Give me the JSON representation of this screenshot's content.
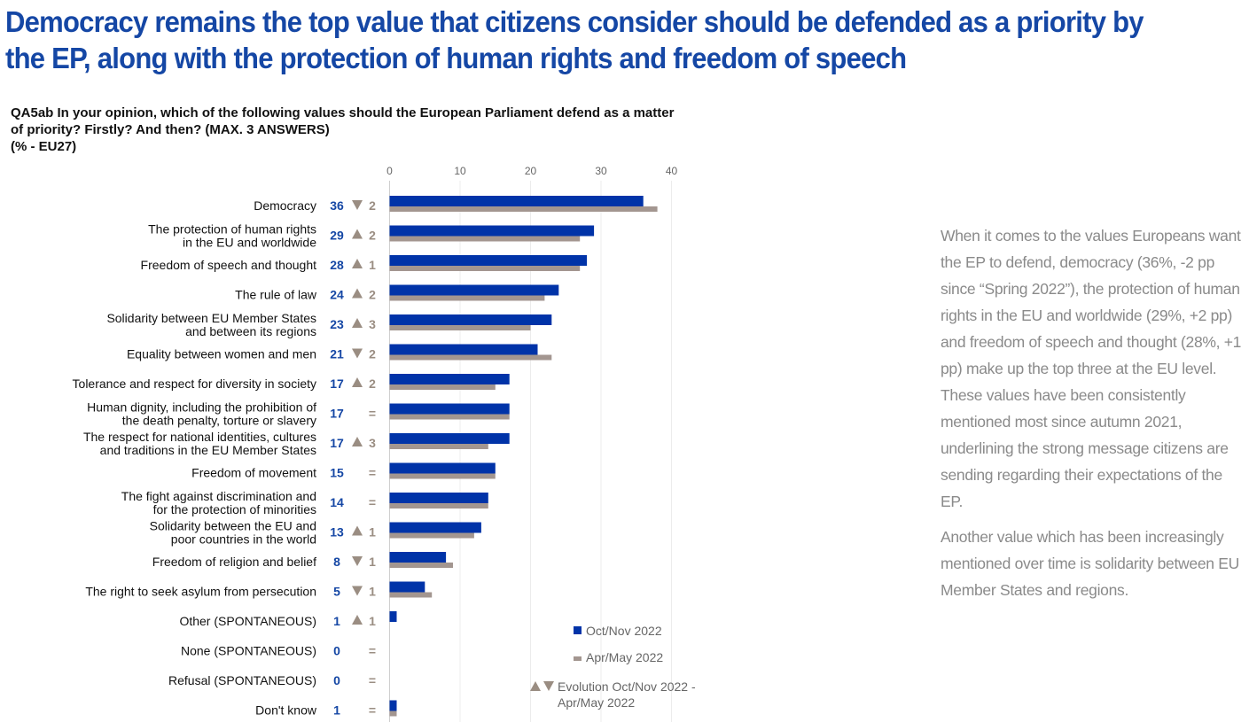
{
  "headline": "Democracy remains the top value that citizens consider should be defended as a priority by the EP, along with the protection of human rights and freedom of speech",
  "question_lines": [
    "QA5ab  In your opinion, which of the following values should the European Parliament defend as a matter",
    "of priority? Firstly? And then? (MAX. 3 ANSWERS)",
    "(% - EU27)"
  ],
  "commentary": [
    "When it comes to the values Europeans want the EP to defend, democracy (36%, -2 pp since “Spring 2022”), the protection of human rights in the EU and worldwide (29%, +2 pp) and freedom of speech and thought (28%, +1 pp) make up the top three at the EU level. These values have been consistently mentioned most since autumn 2021, underlining the strong message citizens are sending regarding their expectations of the EP.",
    "Another value which has been increasingly mentioned over time is solidarity between EU Member States and regions."
  ],
  "colors": {
    "current": "#0033a8",
    "previous": "#a39690",
    "change": "#9a8d82",
    "headline": "#1547a5",
    "commentary": "#8a8a8a"
  },
  "chart_data": {
    "type": "bar",
    "orientation": "horizontal",
    "xlim": [
      0,
      40
    ],
    "xticks": [
      0,
      10,
      20,
      30,
      40
    ],
    "grid": true,
    "legend_position": "bottom-right",
    "categories": [
      [
        "Democracy"
      ],
      [
        "The protection of human rights",
        "in the EU and worldwide"
      ],
      [
        "Freedom of speech and thought"
      ],
      [
        "The rule of law"
      ],
      [
        "Solidarity between EU Member States",
        "and between its regions"
      ],
      [
        "Equality between women and men"
      ],
      [
        "Tolerance and respect for diversity in society"
      ],
      [
        "Human dignity, including the prohibition of",
        "the death penalty, torture or slavery"
      ],
      [
        "The respect for national identities, cultures",
        "and traditions in the EU Member States"
      ],
      [
        "Freedom of movement"
      ],
      [
        "The fight against discrimination and",
        "for the protection of minorities"
      ],
      [
        "Solidarity between the EU and",
        "poor countries in the world"
      ],
      [
        "Freedom of religion and belief"
      ],
      [
        "The right to seek asylum from persecution"
      ],
      [
        "Other (SPONTANEOUS)"
      ],
      [
        "None (SPONTANEOUS)"
      ],
      [
        "Refusal (SPONTANEOUS)"
      ],
      [
        "Don't know"
      ]
    ],
    "series": [
      {
        "name": "Oct/Nov 2022",
        "values": [
          36,
          29,
          28,
          24,
          23,
          21,
          17,
          17,
          17,
          15,
          14,
          13,
          8,
          5,
          1,
          0,
          0,
          1
        ]
      },
      {
        "name": "Apr/May 2022",
        "values": [
          38,
          27,
          27,
          22,
          20,
          23,
          15,
          17,
          14,
          15,
          14,
          12,
          9,
          6,
          0,
          0,
          0,
          1
        ]
      }
    ],
    "change_direction": [
      "down",
      "up",
      "up",
      "up",
      "up",
      "down",
      "up",
      "same",
      "up",
      "same",
      "same",
      "up",
      "down",
      "down",
      "up",
      "same",
      "same",
      "same"
    ],
    "change_magnitude": [
      "2",
      "2",
      "1",
      "2",
      "3",
      "2",
      "2",
      "",
      "3",
      "",
      "",
      "1",
      "1",
      "1",
      "1",
      "",
      "",
      ""
    ],
    "legend": {
      "current": "Oct/Nov 2022",
      "previous": "Apr/May 2022",
      "evolution": [
        "Evolution Oct/Nov 2022 -",
        "Apr/May 2022"
      ]
    }
  }
}
